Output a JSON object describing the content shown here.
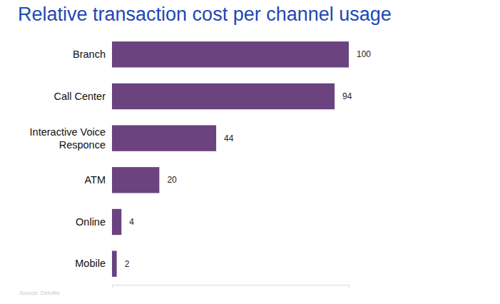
{
  "chart_data": {
    "type": "bar",
    "orientation": "horizontal",
    "title": "Relative transaction cost per channel usage",
    "source": "Source: Deloitte",
    "categories": [
      "Branch",
      "Call Center",
      "Interactive Voice Responce",
      "ATM",
      "Online",
      "Mobile"
    ],
    "values": [
      100,
      94,
      44,
      20,
      4,
      2
    ],
    "color": "#6a437f",
    "xlim": [
      0,
      100
    ],
    "xticks": [
      0,
      100
    ],
    "grid": false,
    "data_labels": true,
    "tick_labels": "y"
  }
}
